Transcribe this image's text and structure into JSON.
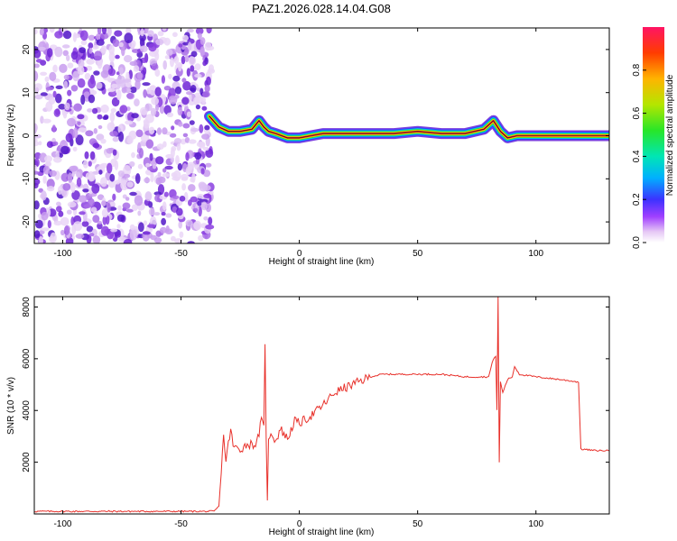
{
  "title": "PAZ1.2026.028.14.04.G08",
  "colors": {
    "snr_line": "#e8302a",
    "axis": "#000000",
    "ridge_dark": "#5522cc"
  },
  "chart_data": [
    {
      "type": "heatmap",
      "xlabel": "Height of straight line (km)",
      "ylabel": "Frequency (Hz)",
      "xlim": [
        -112,
        131
      ],
      "ylim": [
        -25,
        25
      ],
      "x_ticks": [
        -100,
        -50,
        0,
        50,
        100
      ],
      "y_ticks": [
        -20,
        -10,
        0,
        10,
        20
      ],
      "x_tick_labels": [
        "-100",
        "-50",
        "0",
        "50",
        "100"
      ],
      "y_tick_labels": [
        "-20",
        "-10",
        "0",
        "10",
        "20"
      ],
      "noise_region_x": [
        -112,
        -37
      ],
      "ridge": {
        "x": [
          -38,
          -34,
          -30,
          -25,
          -20,
          -17,
          -15,
          -13,
          -10,
          -5,
          0,
          5,
          10,
          20,
          30,
          40,
          50,
          60,
          70,
          78,
          82,
          85,
          88,
          92,
          100,
          110,
          120,
          131
        ],
        "freq": [
          4.5,
          2,
          1,
          1,
          1.5,
          3.5,
          2,
          1,
          0.5,
          -0.5,
          -0.5,
          0,
          0.5,
          0.5,
          0.5,
          0.5,
          1,
          0.5,
          0.5,
          1.5,
          3.5,
          1,
          -0.5,
          0,
          0,
          0,
          0,
          0
        ]
      },
      "colorbar": {
        "label": "Normalized spectral amplitude",
        "range": [
          0,
          1
        ],
        "ticks": [
          0.0,
          0.2,
          0.4,
          0.6,
          0.8
        ],
        "tick_labels": [
          "0.0",
          "0.2",
          "0.4",
          "0.6",
          "0.8"
        ]
      }
    },
    {
      "type": "line",
      "xlabel": "Height of straight line (km)",
      "ylabel": "SNR (10 * v/v)",
      "xlim": [
        -112,
        131
      ],
      "ylim": [
        0,
        8400
      ],
      "x_ticks": [
        -100,
        -50,
        0,
        50,
        100
      ],
      "y_ticks": [
        2000,
        4000,
        6000,
        8000
      ],
      "x_tick_labels": [
        "-100",
        "-50",
        "0",
        "50",
        "100"
      ],
      "y_tick_labels": [
        "2000",
        "4000",
        "6000",
        "8000"
      ],
      "series": [
        {
          "name": "SNR",
          "x": [
            -112,
            -36,
            -34,
            -33,
            -32,
            -31,
            -30,
            -29,
            -28,
            -25,
            -22,
            -18,
            -16,
            -15,
            -14.5,
            -14,
            -13.5,
            -13,
            -12,
            -10,
            -8,
            -5,
            -2,
            0,
            5,
            10,
            15,
            20,
            25,
            30,
            35,
            40,
            50,
            60,
            70,
            75,
            80,
            82,
            83,
            83.5,
            84,
            84.5,
            85,
            86,
            88,
            90,
            91,
            93,
            100,
            110,
            118,
            119,
            120,
            125,
            131
          ],
          "y": [
            100,
            100,
            300,
            1600,
            3100,
            2000,
            2700,
            3300,
            2600,
            2500,
            2700,
            2700,
            3600,
            3300,
            6700,
            3000,
            400,
            2800,
            3200,
            2800,
            3300,
            2900,
            3600,
            3500,
            3800,
            4200,
            4700,
            4900,
            5100,
            5300,
            5400,
            5400,
            5400,
            5400,
            5300,
            5300,
            5300,
            6000,
            6100,
            4000,
            8400,
            2000,
            5100,
            4700,
            5200,
            5300,
            5700,
            5400,
            5300,
            5200,
            5100,
            2500,
            2500,
            2450,
            2450
          ]
        }
      ]
    }
  ]
}
